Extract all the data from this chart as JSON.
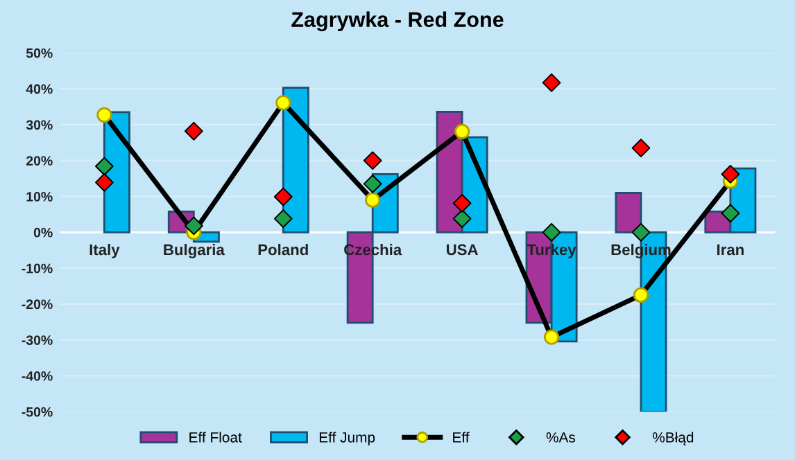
{
  "chart_data": {
    "type": "bar",
    "title": "Zagrywka - Red Zone",
    "categories": [
      "Italy",
      "Bulgaria",
      "Poland",
      "Czechia",
      "USA",
      "Turkey",
      "Belgium",
      "Iran"
    ],
    "series": [
      {
        "name": "Eff Float",
        "color": "#a63399",
        "values": [
          null,
          5.8,
          null,
          -25.2,
          33.6,
          -25.2,
          11.0,
          5.8
        ]
      },
      {
        "name": "Eff Jump",
        "color": "#00b8f0",
        "values": [
          33.5,
          -2.6,
          40.3,
          16.2,
          26.5,
          -30.4,
          -50,
          17.8
        ]
      },
      {
        "name": "Eff",
        "type": "line",
        "color": "#000000",
        "marker": "circle",
        "values": [
          32.7,
          0,
          36.1,
          9.0,
          28.1,
          -29.2,
          -17.5,
          14.3
        ]
      },
      {
        "name": "%As",
        "type": "scatter",
        "color": "#1e9e4a",
        "marker": "diamond",
        "values": [
          18.4,
          1.8,
          3.8,
          13.5,
          3.8,
          0,
          0,
          5.3
        ]
      },
      {
        "name": "%Błąd",
        "type": "scatter",
        "color": "#ff0000",
        "marker": "diamond",
        "values": [
          13.9,
          28.2,
          9.9,
          20.0,
          8.1,
          41.7,
          23.5,
          16.2
        ]
      }
    ],
    "ylim": [
      -50,
      50
    ],
    "yticks": [
      {
        "value": -50,
        "label": "-50%"
      },
      {
        "value": -40,
        "label": "-40%"
      },
      {
        "value": -30,
        "label": "-30%"
      },
      {
        "value": -20,
        "label": "-20%"
      },
      {
        "value": -10,
        "label": "-10%"
      },
      {
        "value": 0,
        "label": "0%"
      },
      {
        "value": 10,
        "label": "10%"
      },
      {
        "value": 20,
        "label": "20%"
      },
      {
        "value": 30,
        "label": "30%"
      },
      {
        "value": 40,
        "label": "40%"
      },
      {
        "value": 50,
        "label": "50%"
      }
    ],
    "grid": "y",
    "legend": "bottom"
  }
}
